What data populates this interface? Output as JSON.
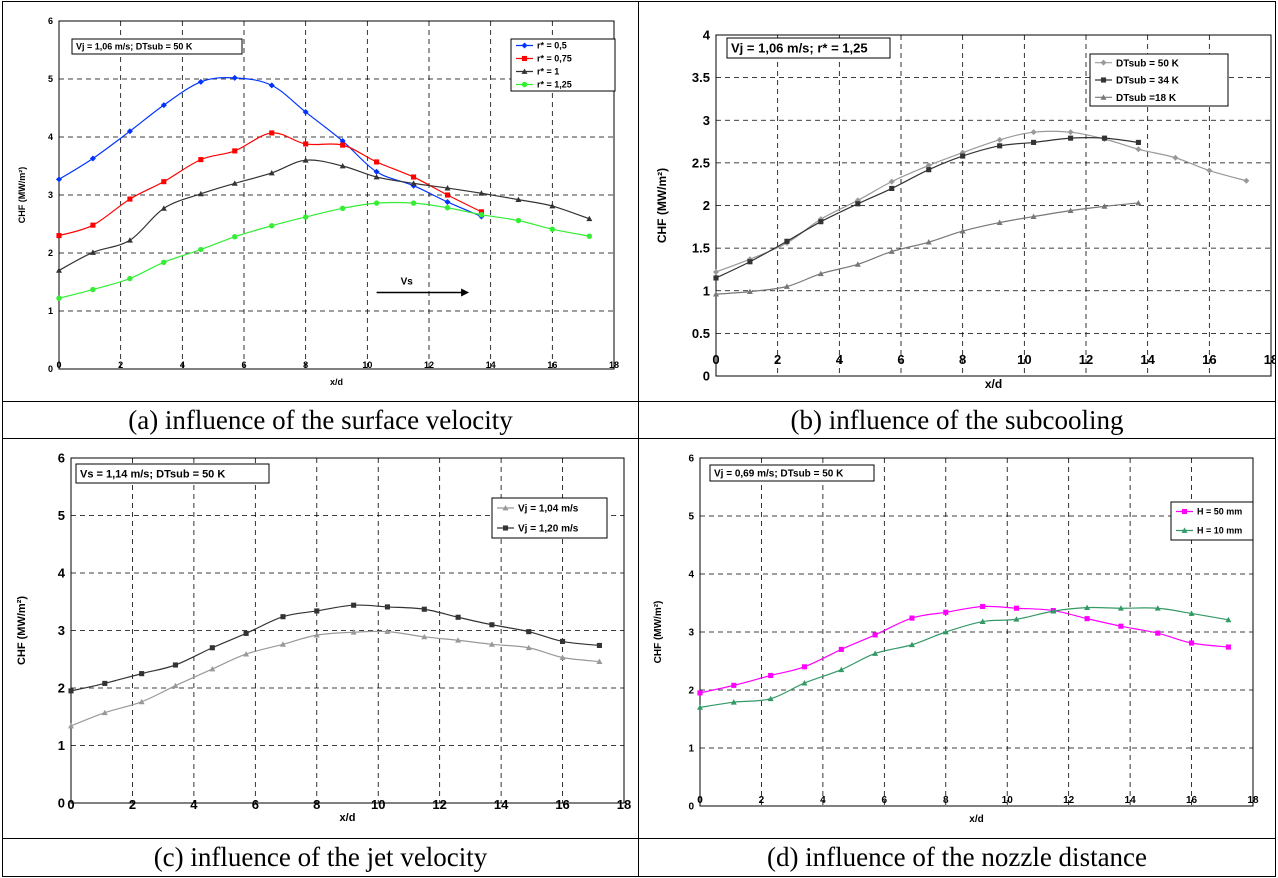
{
  "captions": {
    "a": "(a) influence of the surface velocity",
    "b": "(b) influence of the subcooling",
    "c": "(c) influence of the jet velocity",
    "d": "(d) influence of the nozzle distance"
  },
  "chart_data": [
    {
      "id": "a",
      "type": "line",
      "title": "Vj = 1,06 m/s; DTsub = 50 K",
      "xlabel": "x/d",
      "ylabel": "CHF (MW/m²)",
      "xlim": [
        0,
        18
      ],
      "ylim": [
        0,
        6
      ],
      "xticks": [
        "0",
        "2",
        "4",
        "6",
        "8",
        "10",
        "12",
        "14",
        "16",
        "18"
      ],
      "yticks": [
        "0",
        "1",
        "2",
        "3",
        "4",
        "5",
        "6"
      ],
      "grid": true,
      "legend_position": "top-right",
      "annotation": "Vs",
      "series": [
        {
          "name": "r* = 0,5",
          "color": "#0033ff",
          "marker": "diamond",
          "x": [
            0,
            1.1,
            2.3,
            3.4,
            4.6,
            5.7,
            6.9,
            8.0,
            9.2,
            10.3,
            11.5,
            12.6,
            13.7
          ],
          "y": [
            3.27,
            3.63,
            4.1,
            4.55,
            4.95,
            5.02,
            4.89,
            4.43,
            3.93,
            3.4,
            3.16,
            2.88,
            2.63
          ]
        },
        {
          "name": "r* = 0,75",
          "color": "#ff0000",
          "marker": "square",
          "x": [
            0,
            1.1,
            2.3,
            3.4,
            4.6,
            5.7,
            6.9,
            8.0,
            9.2,
            10.3,
            11.5,
            12.6,
            13.7
          ],
          "y": [
            2.3,
            2.48,
            2.93,
            3.23,
            3.61,
            3.76,
            4.07,
            3.88,
            3.86,
            3.57,
            3.31,
            3.0,
            2.71
          ]
        },
        {
          "name": "r* = 1",
          "color": "#333333",
          "marker": "triangle",
          "x": [
            0,
            1.1,
            2.3,
            3.4,
            4.6,
            5.7,
            6.9,
            8.0,
            9.2,
            10.3,
            11.5,
            12.6,
            13.7,
            14.9,
            16.0,
            17.2
          ],
          "y": [
            1.7,
            2.01,
            2.22,
            2.77,
            3.02,
            3.2,
            3.38,
            3.6,
            3.5,
            3.31,
            3.2,
            3.12,
            3.03,
            2.92,
            2.81,
            2.59
          ]
        },
        {
          "name": "r* = 1,25",
          "color": "#33ee33",
          "marker": "circle",
          "x": [
            0,
            1.1,
            2.3,
            3.4,
            4.6,
            5.7,
            6.9,
            8.0,
            9.2,
            10.3,
            11.5,
            12.6,
            13.7,
            14.9,
            16.0,
            17.2
          ],
          "y": [
            1.22,
            1.37,
            1.56,
            1.84,
            2.06,
            2.28,
            2.47,
            2.62,
            2.77,
            2.86,
            2.86,
            2.78,
            2.66,
            2.56,
            2.41,
            2.29
          ]
        }
      ]
    },
    {
      "id": "b",
      "type": "line",
      "title": "Vj = 1,06 m/s; r* = 1,25",
      "xlabel": "x/d",
      "ylabel": "CHF (MW/m²)",
      "xlim": [
        0,
        18
      ],
      "ylim": [
        0,
        4
      ],
      "xticks": [
        "0",
        "2",
        "4",
        "6",
        "8",
        "10",
        "12",
        "14",
        "16",
        "18"
      ],
      "yticks": [
        "0",
        "0.5",
        "1",
        "1.5",
        "2",
        "2.5",
        "3",
        "3.5",
        "4"
      ],
      "grid": true,
      "legend_position": "top-right",
      "series": [
        {
          "name": "DTsub = 50 K",
          "color": "#999999",
          "marker": "diamond",
          "x": [
            0,
            1.1,
            2.3,
            3.4,
            4.6,
            5.7,
            6.9,
            8.0,
            9.2,
            10.3,
            11.5,
            12.6,
            13.7,
            14.9,
            16.0,
            17.2
          ],
          "y": [
            1.22,
            1.37,
            1.56,
            1.84,
            2.06,
            2.28,
            2.47,
            2.62,
            2.77,
            2.86,
            2.86,
            2.78,
            2.66,
            2.56,
            2.41,
            2.29
          ]
        },
        {
          "name": "DTsub = 34 K",
          "color": "#333333",
          "marker": "square",
          "x": [
            0,
            1.1,
            2.3,
            3.4,
            4.6,
            5.7,
            6.9,
            8.0,
            9.2,
            10.3,
            11.5,
            12.6,
            13.7
          ],
          "y": [
            1.15,
            1.34,
            1.58,
            1.81,
            2.02,
            2.2,
            2.42,
            2.58,
            2.7,
            2.74,
            2.79,
            2.79,
            2.74
          ]
        },
        {
          "name": "DTsub =18 K",
          "color": "#777777",
          "marker": "triangle",
          "x": [
            0,
            1.1,
            2.3,
            3.4,
            4.6,
            5.7,
            6.9,
            8.0,
            9.2,
            10.3,
            11.5,
            12.6,
            13.7
          ],
          "y": [
            0.96,
            0.99,
            1.05,
            1.2,
            1.31,
            1.46,
            1.57,
            1.7,
            1.8,
            1.87,
            1.94,
            1.99,
            2.03
          ]
        }
      ]
    },
    {
      "id": "c",
      "type": "line",
      "title": "Vs = 1,14 m/s; DTsub = 50 K",
      "xlabel": "x/d",
      "ylabel": "CHF (MW/m²)",
      "xlim": [
        0,
        18
      ],
      "ylim": [
        0,
        6
      ],
      "xticks": [
        "0",
        "2",
        "4",
        "6",
        "8",
        "10",
        "12",
        "14",
        "16",
        "18"
      ],
      "yticks": [
        "0",
        "1",
        "2",
        "3",
        "4",
        "5",
        "6"
      ],
      "grid": true,
      "legend_position": "top-right",
      "series": [
        {
          "name": "Vj = 1,04 m/s",
          "color": "#999999",
          "marker": "triangle",
          "x": [
            0,
            1.1,
            2.3,
            3.4,
            4.6,
            5.7,
            6.9,
            8.0,
            9.2,
            10.3,
            11.5,
            12.6,
            13.7,
            14.9,
            16.0,
            17.2
          ],
          "y": [
            1.34,
            1.57,
            1.76,
            2.04,
            2.33,
            2.59,
            2.76,
            2.92,
            2.97,
            2.98,
            2.89,
            2.83,
            2.76,
            2.7,
            2.53,
            2.46
          ]
        },
        {
          "name": "Vj = 1,20 m/s",
          "color": "#333333",
          "marker": "square",
          "x": [
            0,
            1.1,
            2.3,
            3.4,
            4.6,
            5.7,
            6.9,
            8.0,
            9.2,
            10.3,
            11.5,
            12.6,
            13.7,
            14.9,
            16.0,
            17.2
          ],
          "y": [
            1.95,
            2.08,
            2.25,
            2.4,
            2.7,
            2.95,
            3.24,
            3.34,
            3.44,
            3.41,
            3.37,
            3.23,
            3.1,
            2.98,
            2.81,
            2.74
          ]
        }
      ]
    },
    {
      "id": "d",
      "type": "line",
      "title": "Vj = 0,69 m/s; DTsub = 50 K",
      "xlabel": "x/d",
      "ylabel": "CHF (MW/m²)",
      "xlim": [
        0,
        18
      ],
      "ylim": [
        0,
        6
      ],
      "xticks": [
        "0",
        "2",
        "4",
        "6",
        "8",
        "10",
        "12",
        "14",
        "16",
        "18"
      ],
      "yticks": [
        "0",
        "1",
        "2",
        "3",
        "4",
        "5",
        "6"
      ],
      "grid": true,
      "legend_position": "top-right",
      "series": [
        {
          "name": "H = 50 mm",
          "color": "#ff00ff",
          "marker": "square",
          "x": [
            0,
            1.1,
            2.3,
            3.4,
            4.6,
            5.7,
            6.9,
            8.0,
            9.2,
            10.3,
            11.5,
            12.6,
            13.7,
            14.9,
            16.0,
            17.2
          ],
          "y": [
            1.95,
            2.08,
            2.25,
            2.4,
            2.7,
            2.95,
            3.24,
            3.34,
            3.44,
            3.41,
            3.37,
            3.23,
            3.1,
            2.98,
            2.81,
            2.74
          ]
        },
        {
          "name": "H = 10 mm",
          "color": "#339966",
          "marker": "triangle",
          "x": [
            0,
            1.1,
            2.3,
            3.4,
            4.6,
            5.7,
            6.9,
            8.0,
            9.2,
            10.3,
            11.5,
            12.6,
            13.7,
            14.9,
            16.0,
            17.2
          ],
          "y": [
            1.7,
            1.79,
            1.85,
            2.12,
            2.35,
            2.63,
            2.78,
            3.0,
            3.18,
            3.22,
            3.36,
            3.42,
            3.41,
            3.41,
            3.32,
            3.21
          ]
        }
      ]
    }
  ]
}
